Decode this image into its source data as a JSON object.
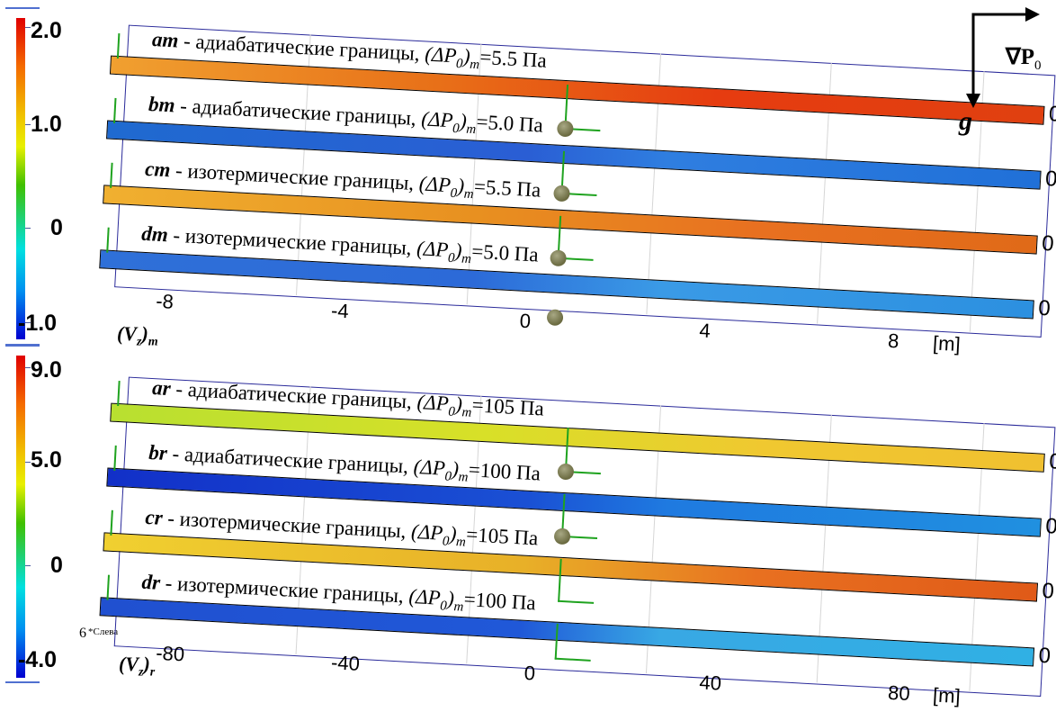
{
  "colors": {
    "bar_colors_m": [
      "#e85a14",
      "#1f6ad0",
      "#e89a28",
      "#2a7fd6"
    ],
    "bar_colors_r": [
      "#d6dc2a",
      "#1a4fd0",
      "#e0b028",
      "#2068d8"
    ],
    "frame": "#2a2a9a",
    "axis_arrow": "#1fa31f"
  },
  "panel_m": {
    "colorbar": {
      "labels": [
        "2.0",
        "1.0",
        "0",
        "-1.0"
      ]
    },
    "symbol_main": "(V",
    "symbol_sub": "z",
    "symbol_close": ")",
    "symbol_subscript": "m",
    "rows": [
      {
        "code": "am",
        "text": " - адиабатические границы, ",
        "dp": "(ΔP",
        "dp_sub": "0",
        "dp_close": ")",
        "dp_m": "m",
        "value": "=5.5 Па",
        "zero": "0"
      },
      {
        "code": "bm",
        "text": " - адиабатические границы, ",
        "dp": "(ΔP",
        "dp_sub": "0",
        "dp_close": ")",
        "dp_m": "m",
        "value": "=5.0 Па",
        "zero": "0"
      },
      {
        "code": "cm",
        "text": " - изотермические границы, ",
        "dp": "(ΔP",
        "dp_sub": "0",
        "dp_close": ")",
        "dp_m": "m",
        "value": "=5.5 Па",
        "zero": "0"
      },
      {
        "code": "dm",
        "text": " - изотермические границы, ",
        "dp": "(ΔP",
        "dp_sub": "0",
        "dp_close": ")",
        "dp_m": "m",
        "value": "=5.0 Па",
        "zero": "0"
      }
    ],
    "axis_ticks": [
      "-8",
      "-4",
      "0",
      "4",
      "8"
    ],
    "unit": "[m]"
  },
  "panel_r": {
    "colorbar": {
      "labels": [
        "9.0",
        "5.0",
        "0",
        "-4.0"
      ]
    },
    "symbol_main": "(V",
    "symbol_sub": "z",
    "symbol_close": ")",
    "symbol_subscript": "r",
    "side_note": "*Слева",
    "side_digit": "6",
    "rows": [
      {
        "code": "ar",
        "text": " - адиабатические границы, ",
        "dp": "(ΔP",
        "dp_sub": "0",
        "dp_close": ")",
        "dp_m": "m",
        "value": "=105 Па",
        "zero": "0"
      },
      {
        "code": "br",
        "text": " - адиабатические границы, ",
        "dp": "(ΔP",
        "dp_sub": "0",
        "dp_close": ")",
        "dp_m": "m",
        "value": "=100 Па",
        "zero": "0"
      },
      {
        "code": "cr",
        "text": " - изотермические границы, ",
        "dp": "(ΔP",
        "dp_sub": "0",
        "dp_close": ")",
        "dp_m": "m",
        "value": "=105 Па",
        "zero": "0"
      },
      {
        "code": "dr",
        "text": " - изотермические границы, ",
        "dp": "(ΔP",
        "dp_sub": "0",
        "dp_close": ")",
        "dp_m": "m",
        "value": "=100 Па",
        "zero": "0"
      }
    ],
    "axis_ticks": [
      "-80",
      "-40",
      "0",
      "40",
      "80"
    ],
    "unit": "[m]"
  },
  "legend_top_right": {
    "grad_p": "∇P",
    "grad_p_sub": "0",
    "gravity": "g"
  }
}
